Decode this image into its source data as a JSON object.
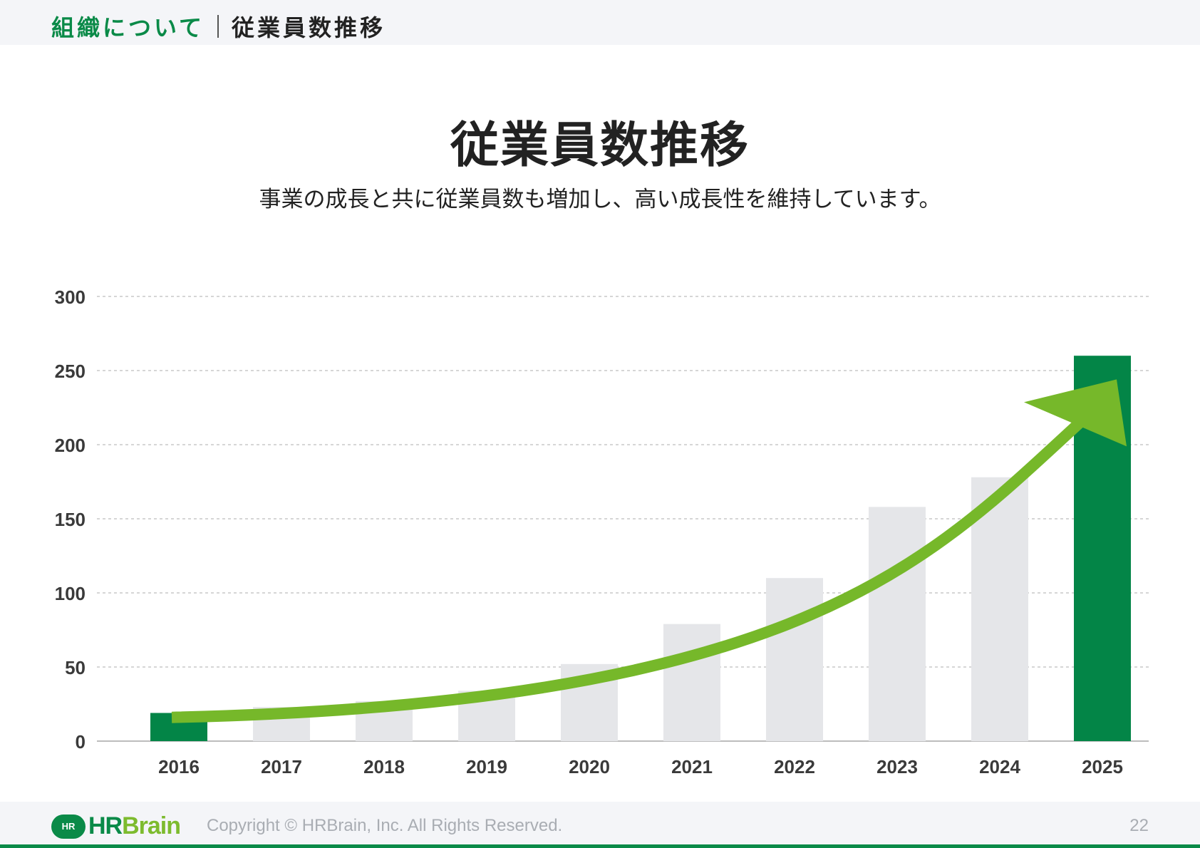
{
  "header": {
    "section": "組織について",
    "page": "従業員数推移"
  },
  "main": {
    "title": "従業員数推移",
    "subtitle": "事業の成長と共に従業員数も増加し、高い成長性を維持しています。"
  },
  "chart_data": {
    "type": "bar",
    "categories": [
      "2016",
      "2017",
      "2018",
      "2019",
      "2020",
      "2021",
      "2022",
      "2023",
      "2024",
      "2025"
    ],
    "values": [
      19,
      23,
      27,
      34,
      52,
      79,
      110,
      158,
      178,
      260
    ],
    "highlighted": [
      "2016",
      "2025"
    ],
    "yticks": [
      0,
      50,
      100,
      150,
      200,
      250,
      300
    ],
    "ylim": [
      0,
      300
    ],
    "grid": true,
    "trend_arrow": true,
    "colors": {
      "highlight": "#038547",
      "bar": "#e5e6e9",
      "trend": "#76b82a",
      "grid": "#c8c8c8",
      "tick_text": "#3a3a3a"
    }
  },
  "footer": {
    "logo_badge": "HR",
    "logo_hr": "HR",
    "logo_brain": "Brain",
    "copyright": "Copyright © HRBrain, Inc. All Rights Reserved.",
    "page_number": "22"
  }
}
